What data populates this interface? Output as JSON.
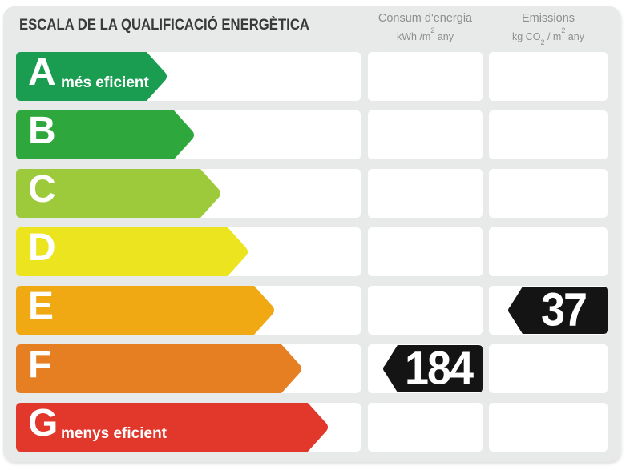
{
  "title": "ESCALA DE LA QUALIFICACIÓ ENERGÈTICA",
  "header": {
    "consum": {
      "title": "Consum d'energia",
      "u1": "kWh /m",
      "u1sup": "2",
      "u2": " any"
    },
    "emissions": {
      "title": "Emissions",
      "e1": "kg CO",
      "e1sub": "2",
      "e2": " / m",
      "e2sup": "2",
      "e3": " any"
    }
  },
  "scale": {
    "rows": [
      {
        "letter": "A",
        "label": "més eficient",
        "color": "#1a9c51",
        "consum": null,
        "emissions": null
      },
      {
        "letter": "B",
        "label": "",
        "color": "#2ea83c",
        "consum": null,
        "emissions": null
      },
      {
        "letter": "C",
        "label": "",
        "color": "#9cca3a",
        "consum": null,
        "emissions": null
      },
      {
        "letter": "D",
        "label": "",
        "color": "#ece41e",
        "consum": null,
        "emissions": null
      },
      {
        "letter": "E",
        "label": "",
        "color": "#f0a813",
        "consum": null,
        "emissions": 37
      },
      {
        "letter": "F",
        "label": "",
        "color": "#e67e22",
        "consum": 184,
        "emissions": null
      },
      {
        "letter": "G",
        "label": "menys eficient",
        "color": "#e2372b",
        "consum": null,
        "emissions": null
      }
    ],
    "marker_color": "#141414",
    "panel_bg": "#e8e9e9"
  },
  "chart_data": {
    "type": "bar",
    "title": "ESCALA DE LA QUALIFICACIÓ ENERGÈTICA",
    "categories": [
      "A",
      "B",
      "C",
      "D",
      "E",
      "F",
      "G"
    ],
    "category_annotations": {
      "A": "més eficient",
      "G": "menys eficient"
    },
    "bar_colors": [
      "#1a9c51",
      "#2ea83c",
      "#9cca3a",
      "#ece41e",
      "#f0a813",
      "#e67e22",
      "#e2372b"
    ],
    "bar_relative_lengths": [
      190,
      224,
      257,
      291,
      324,
      358,
      391
    ],
    "series": [
      {
        "name": "Consum d'energia (kWh/m² any)",
        "rating": "F",
        "value": 184
      },
      {
        "name": "Emissions (kg CO₂/m² any)",
        "rating": "E",
        "value": 37
      }
    ],
    "legend_position": "none",
    "grid": false
  }
}
